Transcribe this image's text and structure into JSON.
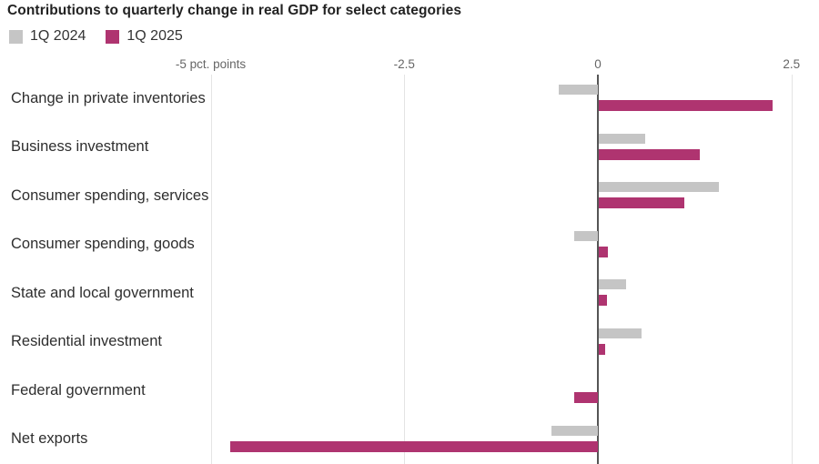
{
  "title": "Contributions to quarterly change in real GDP for select categories",
  "colors": {
    "series_1q2024": "#c5c5c5",
    "series_1q2025": "#af3470",
    "zero_line": "#555555",
    "gridline": "#e4e4e4",
    "title_text": "#222222",
    "category_text": "#2e2e2e",
    "tick_text": "#666666"
  },
  "legend": {
    "items": [
      {
        "label": "1Q 2024",
        "color_key": "series_1q2024"
      },
      {
        "label": "1Q 2025",
        "color_key": "series_1q2025"
      }
    ]
  },
  "chart_data": {
    "type": "bar",
    "orientation": "horizontal",
    "title": "Contributions to quarterly change in real GDP for select categories",
    "unit": "pct. points",
    "categories": [
      "Change in private inventories",
      "Business investment",
      "Consumer spending, services",
      "Consumer spending, goods",
      "State and local government",
      "Residential investment",
      "Federal government",
      "Net exports"
    ],
    "series": [
      {
        "name": "1Q 2024",
        "values": [
          -0.5,
          0.6,
          1.55,
          -0.3,
          0.35,
          0.55,
          0,
          -0.6
        ]
      },
      {
        "name": "1Q 2025",
        "values": [
          2.25,
          1.3,
          1.1,
          0.12,
          0.1,
          0.08,
          -0.3,
          -4.75
        ]
      }
    ],
    "ticks": [
      {
        "value": -5,
        "label": "-5 pct. points"
      },
      {
        "value": -2.5,
        "label": "-2.5"
      },
      {
        "value": 0,
        "label": "0"
      },
      {
        "value": 2.5,
        "label": "2.5"
      }
    ],
    "xlim": [
      -5.3,
      2.85
    ],
    "grid": true,
    "legend_position": "top-left"
  }
}
